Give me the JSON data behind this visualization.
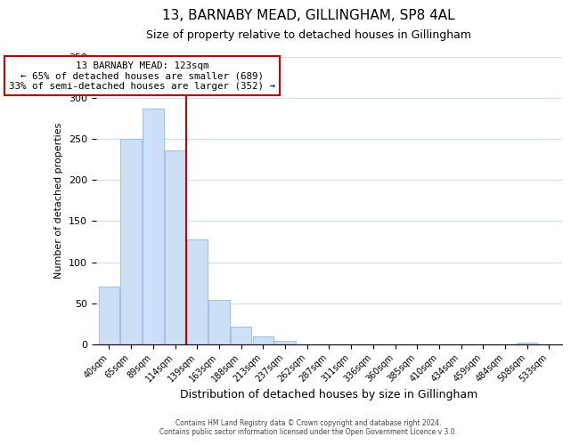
{
  "title": "13, BARNABY MEAD, GILLINGHAM, SP8 4AL",
  "subtitle": "Size of property relative to detached houses in Gillingham",
  "xlabel": "Distribution of detached houses by size in Gillingham",
  "ylabel": "Number of detached properties",
  "bar_labels": [
    "40sqm",
    "65sqm",
    "89sqm",
    "114sqm",
    "139sqm",
    "163sqm",
    "188sqm",
    "213sqm",
    "237sqm",
    "262sqm",
    "287sqm",
    "311sqm",
    "336sqm",
    "360sqm",
    "385sqm",
    "410sqm",
    "434sqm",
    "459sqm",
    "484sqm",
    "508sqm",
    "533sqm"
  ],
  "bar_values": [
    70,
    250,
    287,
    236,
    128,
    54,
    22,
    10,
    4,
    0,
    0,
    0,
    0,
    0,
    0,
    0,
    0,
    0,
    0,
    2,
    0
  ],
  "bar_color": "#cce0f5",
  "bar_edge_color": "#a0c4e8",
  "vline_x": 3.5,
  "vline_color": "#cc0000",
  "annotation_title": "13 BARNABY MEAD: 123sqm",
  "annotation_line1": "← 65% of detached houses are smaller (689)",
  "annotation_line2": "33% of semi-detached houses are larger (352) →",
  "annotation_box_color": "#ffffff",
  "annotation_box_edge": "#cc0000",
  "ylim": [
    0,
    350
  ],
  "yticks": [
    0,
    50,
    100,
    150,
    200,
    250,
    300,
    350
  ],
  "footer1": "Contains HM Land Registry data © Crown copyright and database right 2024.",
  "footer2": "Contains public sector information licensed under the Open Government Licence v 3.0.",
  "bg_color": "#ffffff",
  "grid_color": "#d0dde8"
}
